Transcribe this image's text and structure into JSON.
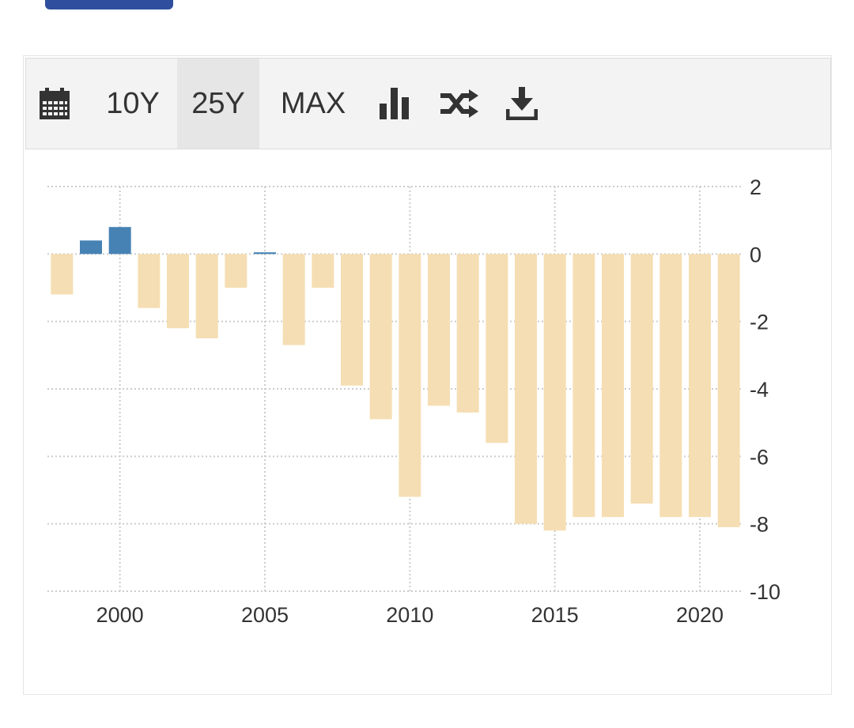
{
  "toolbar": {
    "icons": {
      "calendar": "calendar-icon",
      "bar_chart": "bar-chart-icon",
      "shuffle": "shuffle-icon",
      "download": "download-icon"
    },
    "range_buttons": [
      {
        "label": "10Y",
        "active": false
      },
      {
        "label": "25Y",
        "active": true
      },
      {
        "label": "MAX",
        "active": false
      }
    ]
  },
  "colors": {
    "positive": "#4682b4",
    "negative": "#f5deb3",
    "grid": "#cccccc",
    "text": "#333333"
  },
  "chart_data": {
    "type": "bar",
    "title": "",
    "xlabel": "",
    "ylabel": "",
    "x": [
      1998,
      1999,
      2000,
      2001,
      2002,
      2003,
      2004,
      2005,
      2006,
      2007,
      2008,
      2009,
      2010,
      2011,
      2012,
      2013,
      2014,
      2015,
      2016,
      2017,
      2018,
      2019,
      2020,
      2021
    ],
    "values": [
      -1.2,
      0.4,
      0.8,
      -1.6,
      -2.2,
      -2.5,
      -1.0,
      0.05,
      -2.7,
      -1.0,
      -3.9,
      -4.9,
      -7.2,
      -4.5,
      -4.7,
      -5.6,
      -8.0,
      -8.2,
      -7.8,
      -7.8,
      -7.4,
      -7.8,
      -7.8,
      -8.1
    ],
    "x_ticks": [
      "2000",
      "2005",
      "2010",
      "2015",
      "2020"
    ],
    "y_ticks": [
      "2",
      "0",
      "-2",
      "-4",
      "-6",
      "-8",
      "-10"
    ],
    "ylim": [
      -10,
      2
    ],
    "xlim": [
      1997.5,
      2021.5
    ],
    "grid": true,
    "y_axis_position": "right"
  }
}
